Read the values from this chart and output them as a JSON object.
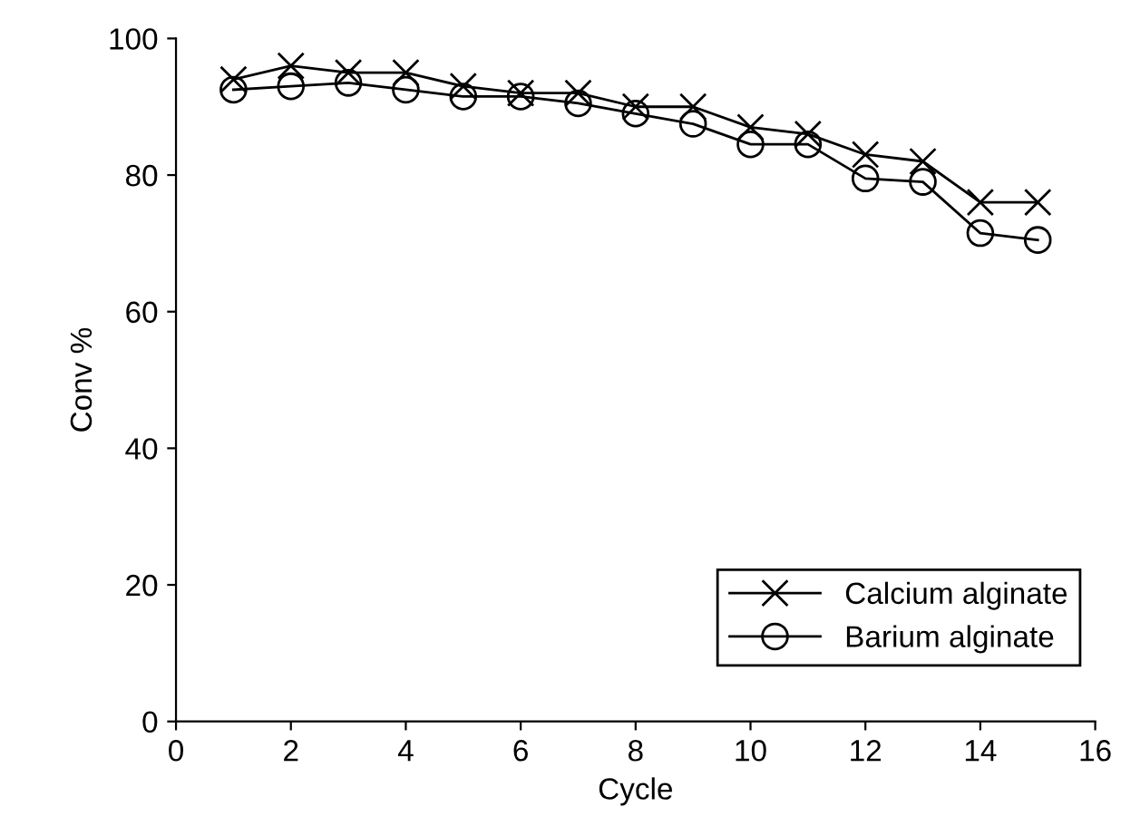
{
  "chart_data": {
    "type": "line",
    "xlabel": "Cycle",
    "ylabel": "Conv %",
    "x": [
      1,
      2,
      3,
      4,
      5,
      6,
      7,
      8,
      9,
      10,
      11,
      12,
      13,
      14,
      15
    ],
    "series": [
      {
        "name": "Calcium alginate",
        "color": "#000000",
        "marker": "cross",
        "values": [
          94,
          96,
          95,
          95,
          93,
          92,
          92,
          90,
          90,
          87,
          86,
          83,
          82,
          76,
          76
        ]
      },
      {
        "name": "Barium alginate",
        "color": "#000000",
        "marker": "circle",
        "values": [
          92.5,
          93,
          93.5,
          92.5,
          91.5,
          91.5,
          90.5,
          89,
          87.5,
          84.5,
          84.5,
          79.5,
          79,
          71.5,
          70.5
        ]
      }
    ],
    "xlim": [
      0,
      16
    ],
    "xticks": [
      0,
      2,
      4,
      6,
      8,
      10,
      12,
      14,
      16
    ],
    "ylim": [
      0,
      100
    ],
    "yticks": [
      0,
      20,
      40,
      60,
      80,
      100
    ],
    "grid": false,
    "legend": "bottom right",
    "line_style": "solid"
  }
}
